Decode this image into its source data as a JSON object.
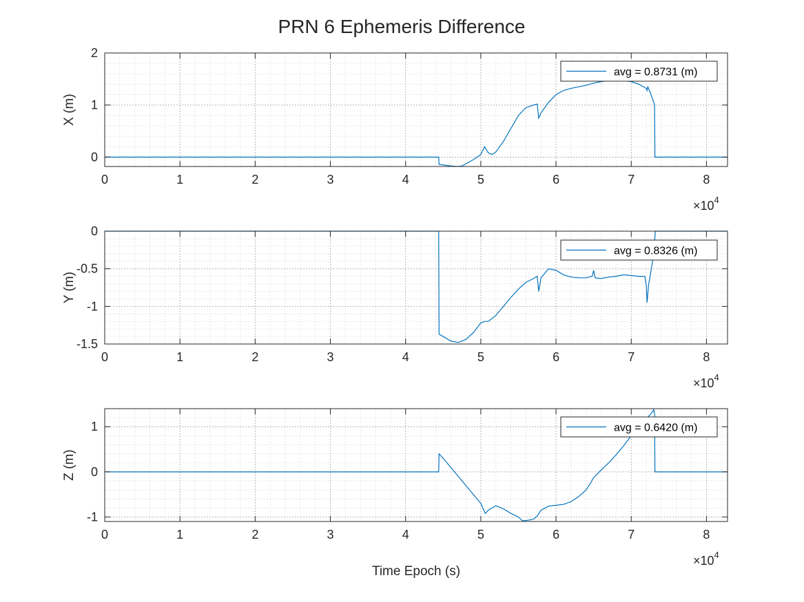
{
  "figure": {
    "title": "PRN 6 Ephemeris Difference"
  },
  "chart_data": [
    {
      "type": "line",
      "ylabel": "Y (m)",
      "ylabel_override": "X (m)",
      "xlabel": "",
      "xlim": [
        0,
        82800
      ],
      "ylim": [
        -0.18,
        2
      ],
      "yticks": [
        0,
        1,
        2
      ],
      "ytick_labels": [
        "0",
        "1",
        "2"
      ],
      "xticks": [
        0,
        10000,
        20000,
        30000,
        40000,
        50000,
        60000,
        70000,
        80000
      ],
      "xtick_labels": [
        "0",
        "1",
        "2",
        "3",
        "4",
        "5",
        "6",
        "7",
        "8"
      ],
      "x_exponent_base": "×10",
      "x_exponent_power": "4",
      "grid": true,
      "minor_grid": true,
      "legend_position": "top-right",
      "series": [
        {
          "name": "avg = 0.8731 (m)",
          "color": "#0072bd",
          "x": [
            0,
            44400,
            44450,
            45000,
            46000,
            47000,
            47500,
            48000,
            49000,
            50000,
            50500,
            51000,
            51500,
            52000,
            53000,
            54000,
            55000,
            56000,
            57000,
            57500,
            57600,
            57700,
            58000,
            59000,
            60000,
            61000,
            62000,
            63000,
            64000,
            65000,
            66000,
            67000,
            68000,
            69000,
            70000,
            71000,
            72000,
            72100,
            72200,
            72500,
            73000,
            73100,
            73150,
            82800
          ],
          "y": [
            0,
            0,
            -0.14,
            -0.15,
            -0.17,
            -0.18,
            -0.17,
            -0.13,
            -0.05,
            0.05,
            0.2,
            0.08,
            0.05,
            0.1,
            0.3,
            0.55,
            0.8,
            0.95,
            1.0,
            1.02,
            0.88,
            0.75,
            0.85,
            1.05,
            1.2,
            1.28,
            1.32,
            1.35,
            1.38,
            1.42,
            1.45,
            1.47,
            1.48,
            1.47,
            1.45,
            1.4,
            1.32,
            1.28,
            1.35,
            1.25,
            1.05,
            1.0,
            0,
            0
          ]
        }
      ]
    },
    {
      "type": "line",
      "ylabel": "Y (m)",
      "xlabel": "",
      "xlim": [
        0,
        82800
      ],
      "ylim": [
        -1.5,
        0
      ],
      "yticks": [
        -1.5,
        -1,
        -0.5,
        0
      ],
      "ytick_labels": [
        "-1.5",
        "-1",
        "-0.5",
        "0"
      ],
      "xticks": [
        0,
        10000,
        20000,
        30000,
        40000,
        50000,
        60000,
        70000,
        80000
      ],
      "xtick_labels": [
        "0",
        "1",
        "2",
        "3",
        "4",
        "5",
        "6",
        "7",
        "8"
      ],
      "x_exponent_base": "×10",
      "x_exponent_power": "4",
      "grid": true,
      "minor_grid": true,
      "legend_position": "top-right",
      "series": [
        {
          "name": "avg = 0.8326 (m)",
          "color": "#0072bd",
          "x": [
            0,
            44400,
            44450,
            45000,
            46000,
            47000,
            48000,
            49000,
            50000,
            50500,
            51000,
            52000,
            53000,
            54000,
            55000,
            56000,
            57000,
            57500,
            57600,
            57700,
            58000,
            59000,
            60000,
            61000,
            62000,
            63000,
            64000,
            64800,
            65000,
            65200,
            66000,
            67000,
            68000,
            69000,
            70000,
            71000,
            71800,
            72000,
            72100,
            72300,
            72500,
            73000,
            73200,
            82800
          ],
          "y": [
            0,
            0,
            -1.37,
            -1.4,
            -1.46,
            -1.48,
            -1.44,
            -1.35,
            -1.22,
            -1.2,
            -1.2,
            -1.12,
            -1.0,
            -0.88,
            -0.77,
            -0.68,
            -0.63,
            -0.6,
            -0.7,
            -0.8,
            -0.62,
            -0.5,
            -0.52,
            -0.58,
            -0.61,
            -0.62,
            -0.62,
            -0.6,
            -0.52,
            -0.62,
            -0.63,
            -0.61,
            -0.6,
            -0.58,
            -0.59,
            -0.6,
            -0.6,
            -0.72,
            -0.95,
            -0.72,
            -0.6,
            -0.3,
            0,
            0
          ]
        }
      ]
    },
    {
      "type": "line",
      "ylabel": "Z (m)",
      "xlabel": "Time Epoch (s)",
      "xlim": [
        0,
        82800
      ],
      "ylim": [
        -1.1,
        1.4
      ],
      "yticks": [
        -1,
        0,
        1
      ],
      "ytick_labels": [
        "-1",
        "0",
        "1"
      ],
      "xticks": [
        0,
        10000,
        20000,
        30000,
        40000,
        50000,
        60000,
        70000,
        80000
      ],
      "xtick_labels": [
        "0",
        "1",
        "2",
        "3",
        "4",
        "5",
        "6",
        "7",
        "8"
      ],
      "x_exponent_base": "×10",
      "x_exponent_power": "4",
      "grid": true,
      "minor_grid": true,
      "legend_position": "top-right",
      "series": [
        {
          "name": "avg = 0.6420 (m)",
          "color": "#0072bd",
          "x": [
            0,
            44400,
            44450,
            45000,
            46000,
            47000,
            48000,
            49000,
            50000,
            50400,
            50600,
            51000,
            52000,
            53000,
            54000,
            55000,
            55500,
            56000,
            57000,
            57500,
            58000,
            59000,
            60000,
            61000,
            62000,
            63000,
            64000,
            64700,
            64800,
            65000,
            66000,
            67000,
            68000,
            69000,
            70000,
            71000,
            72000,
            72600,
            72900,
            73000,
            73100,
            73150,
            82800
          ],
          "y": [
            0,
            0,
            0.4,
            0.3,
            0.1,
            -0.1,
            -0.3,
            -0.5,
            -0.7,
            -0.85,
            -0.92,
            -0.85,
            -0.75,
            -0.82,
            -0.92,
            -1.0,
            -1.08,
            -1.08,
            -1.05,
            -0.98,
            -0.85,
            -0.76,
            -0.74,
            -0.72,
            -0.66,
            -0.55,
            -0.4,
            -0.22,
            -0.18,
            -0.13,
            0.04,
            0.2,
            0.38,
            0.58,
            0.8,
            1.0,
            1.18,
            1.28,
            1.35,
            1.38,
            1.3,
            0,
            0
          ]
        }
      ]
    }
  ]
}
